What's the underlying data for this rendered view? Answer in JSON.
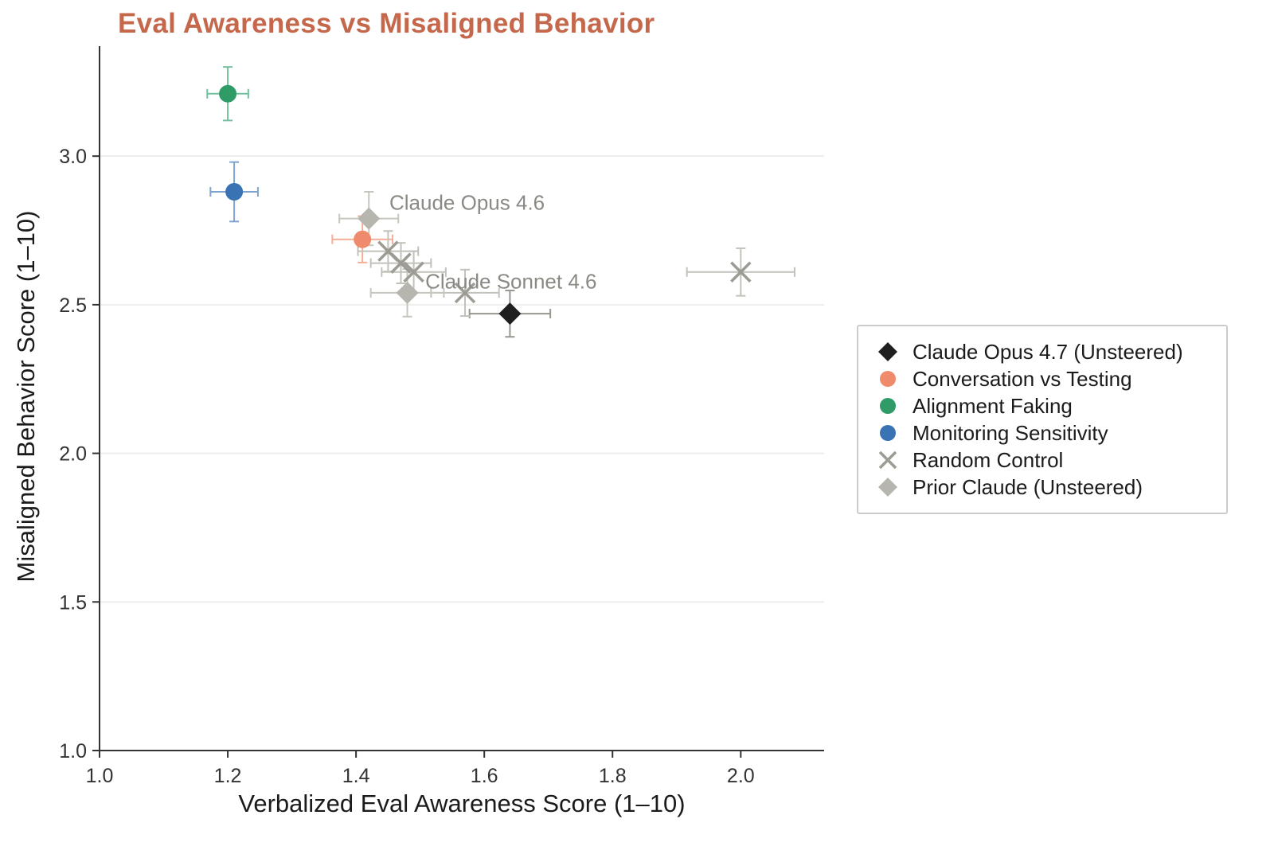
{
  "colors": {
    "title": "#c5674b",
    "axis": "#333333",
    "grid": "#ededed",
    "annotation": "#8a8a85"
  },
  "chart_data": {
    "type": "scatter",
    "title": "Eval Awareness vs Misaligned Behavior",
    "xlabel": "Verbalized Eval Awareness Score (1–10)",
    "ylabel": "Misaligned Behavior Score (1–10)",
    "xlim": [
      1.0,
      2.13
    ],
    "ylim": [
      1.0,
      3.37
    ],
    "xticks": [
      "1.0",
      "1.2",
      "1.4",
      "1.6",
      "1.8",
      "2.0"
    ],
    "yticks": [
      "1.0",
      "1.5",
      "2.0",
      "2.5",
      "3.0"
    ],
    "grid": "horizontal",
    "legend_position": "right",
    "series": [
      {
        "name": "Claude Opus 4.7 (Unsteered)",
        "marker": "diamond",
        "color": "#1f1f1f",
        "error_color": "#999590",
        "points": [
          {
            "x": 1.64,
            "y": 2.47,
            "xerr": 0.063,
            "yerr": 0.078
          }
        ]
      },
      {
        "name": "Conversation vs Testing",
        "marker": "circle",
        "color": "#f08a6c",
        "error_color": "#f4ad96",
        "points": [
          {
            "x": 1.41,
            "y": 2.72,
            "xerr": 0.047,
            "yerr": 0.078
          }
        ]
      },
      {
        "name": "Alignment Faking",
        "marker": "circle",
        "color": "#2f9c68",
        "error_color": "#74c09d",
        "points": [
          {
            "x": 1.2,
            "y": 3.21,
            "xerr": 0.032,
            "yerr": 0.09
          }
        ]
      },
      {
        "name": "Monitoring Sensitivity",
        "marker": "circle",
        "color": "#3a73b4",
        "error_color": "#7fa3cf",
        "points": [
          {
            "x": 1.21,
            "y": 2.88,
            "xerr": 0.037,
            "yerr": 0.1
          }
        ]
      },
      {
        "name": "Random Control",
        "marker": "x",
        "color": "#9c9c94",
        "error_color": "#c2c2bb",
        "points": [
          {
            "x": 1.45,
            "y": 2.68,
            "xerr": 0.047,
            "yerr": 0.068
          },
          {
            "x": 1.47,
            "y": 2.64,
            "xerr": 0.047,
            "yerr": 0.068
          },
          {
            "x": 1.49,
            "y": 2.61,
            "xerr": 0.05,
            "yerr": 0.07
          },
          {
            "x": 1.57,
            "y": 2.54,
            "xerr": 0.053,
            "yerr": 0.078
          },
          {
            "x": 2.0,
            "y": 2.61,
            "xerr": 0.084,
            "yerr": 0.08
          }
        ]
      },
      {
        "name": "Prior Claude (Unsteered)",
        "marker": "diamond",
        "color": "#b6b6ae",
        "error_color": "#c6c6bf",
        "points": [
          {
            "x": 1.42,
            "y": 2.79,
            "xerr": 0.046,
            "yerr": 0.09,
            "label": "Claude Opus 4.6"
          },
          {
            "x": 1.48,
            "y": 2.54,
            "xerr": 0.057,
            "yerr": 0.08,
            "label": "Claude Sonnet 4.6"
          }
        ]
      }
    ],
    "annotations": [
      {
        "text": "Claude Opus 4.6",
        "x": 1.452,
        "y": 2.82
      },
      {
        "text": "Claude Sonnet 4.6",
        "x": 1.508,
        "y": 2.555
      }
    ]
  }
}
